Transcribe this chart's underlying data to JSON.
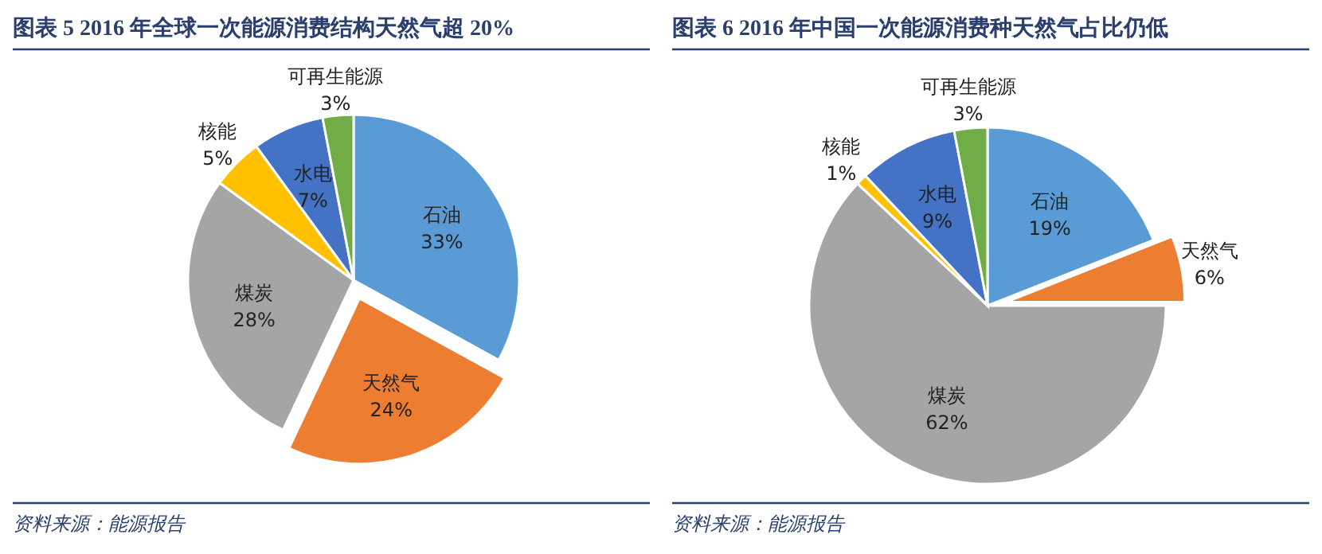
{
  "chart_data": [
    {
      "type": "pie",
      "title": "图表 5   2016 年全球一次能源消费结构天然气超 20%",
      "categories": [
        "石油",
        "天然气",
        "煤炭",
        "核能",
        "水电",
        "可再生能源"
      ],
      "values": [
        33,
        24,
        28,
        5,
        7,
        3
      ],
      "value_labels": [
        "33%",
        "24%",
        "28%",
        "5%",
        "7%",
        "3%"
      ],
      "colors": [
        "#5b9bd5",
        "#ed7d31",
        "#a5a5a5",
        "#ffc000",
        "#4472c4",
        "#70ad47"
      ],
      "annotations": [
        "资料来源：能源报告"
      ]
    },
    {
      "type": "pie",
      "title": "图表 6   2016 年中国一次能源消费种天然气占比仍低",
      "categories": [
        "石油",
        "天然气",
        "煤炭",
        "核能",
        "水电",
        "可再生能源"
      ],
      "values": [
        19,
        6,
        62,
        1,
        9,
        3
      ],
      "value_labels": [
        "19%",
        "6%",
        "62%",
        "1%",
        "9%",
        "3%"
      ],
      "colors": [
        "#5b9bd5",
        "#ed7d31",
        "#a5a5a5",
        "#ffc000",
        "#4472c4",
        "#70ad47"
      ],
      "annotations": [
        "资料来源：能源报告"
      ]
    }
  ]
}
